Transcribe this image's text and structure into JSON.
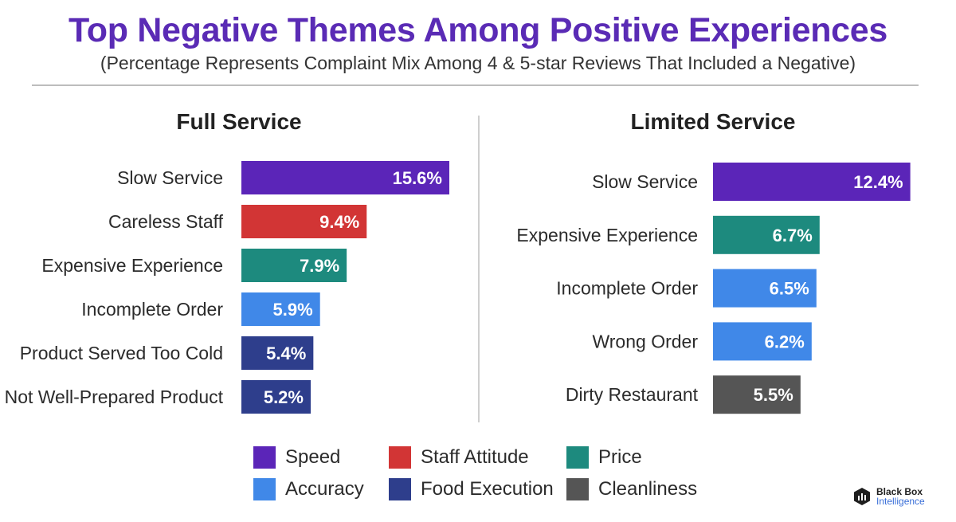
{
  "title": "Top Negative Themes Among Positive Experiences",
  "subtitle": "(Percentage Represents Complaint Mix Among 4 & 5-star Reviews That Included a Negative)",
  "colors": {
    "Speed": "#5b25b8",
    "Staff Attitude": "#d23535",
    "Price": "#1d8a7e",
    "Accuracy": "#4088e8",
    "Food Execution": "#2e3e8c",
    "Cleanliness": "#555555"
  },
  "legend": [
    {
      "label": "Speed",
      "color": "#5b25b8"
    },
    {
      "label": "Staff Attitude",
      "color": "#d23535"
    },
    {
      "label": "Price",
      "color": "#1d8a7e"
    },
    {
      "label": "Accuracy",
      "color": "#4088e8"
    },
    {
      "label": "Food Execution",
      "color": "#2e3e8c"
    },
    {
      "label": "Cleanliness",
      "color": "#555555"
    }
  ],
  "logo": {
    "line1": "Black Box",
    "line2": "Intelligence"
  },
  "chart_data": [
    {
      "type": "bar",
      "orientation": "horizontal",
      "title": "Full Service",
      "categories": [
        "Slow Service",
        "Careless Staff",
        "Expensive Experience",
        "Incomplete Order",
        "Product Served Too Cold",
        "Not Well-Prepared Product"
      ],
      "values": [
        15.6,
        9.4,
        7.9,
        5.9,
        5.4,
        5.2
      ],
      "value_labels": [
        "15.6%",
        "9.4%",
        "7.9%",
        "5.9%",
        "5.4%",
        "5.2%"
      ],
      "themes": [
        "Speed",
        "Staff Attitude",
        "Price",
        "Accuracy",
        "Food Execution",
        "Food Execution"
      ],
      "unit": "%",
      "grid": false
    },
    {
      "type": "bar",
      "orientation": "horizontal",
      "title": "Limited Service",
      "categories": [
        "Slow Service",
        "Expensive Experience",
        "Incomplete Order",
        "Wrong Order",
        "Dirty Restaurant"
      ],
      "values": [
        12.4,
        6.7,
        6.5,
        6.2,
        5.5
      ],
      "value_labels": [
        "12.4%",
        "6.7%",
        "6.5%",
        "6.2%",
        "5.5%"
      ],
      "themes": [
        "Speed",
        "Price",
        "Accuracy",
        "Accuracy",
        "Cleanliness"
      ],
      "unit": "%",
      "grid": false
    }
  ]
}
